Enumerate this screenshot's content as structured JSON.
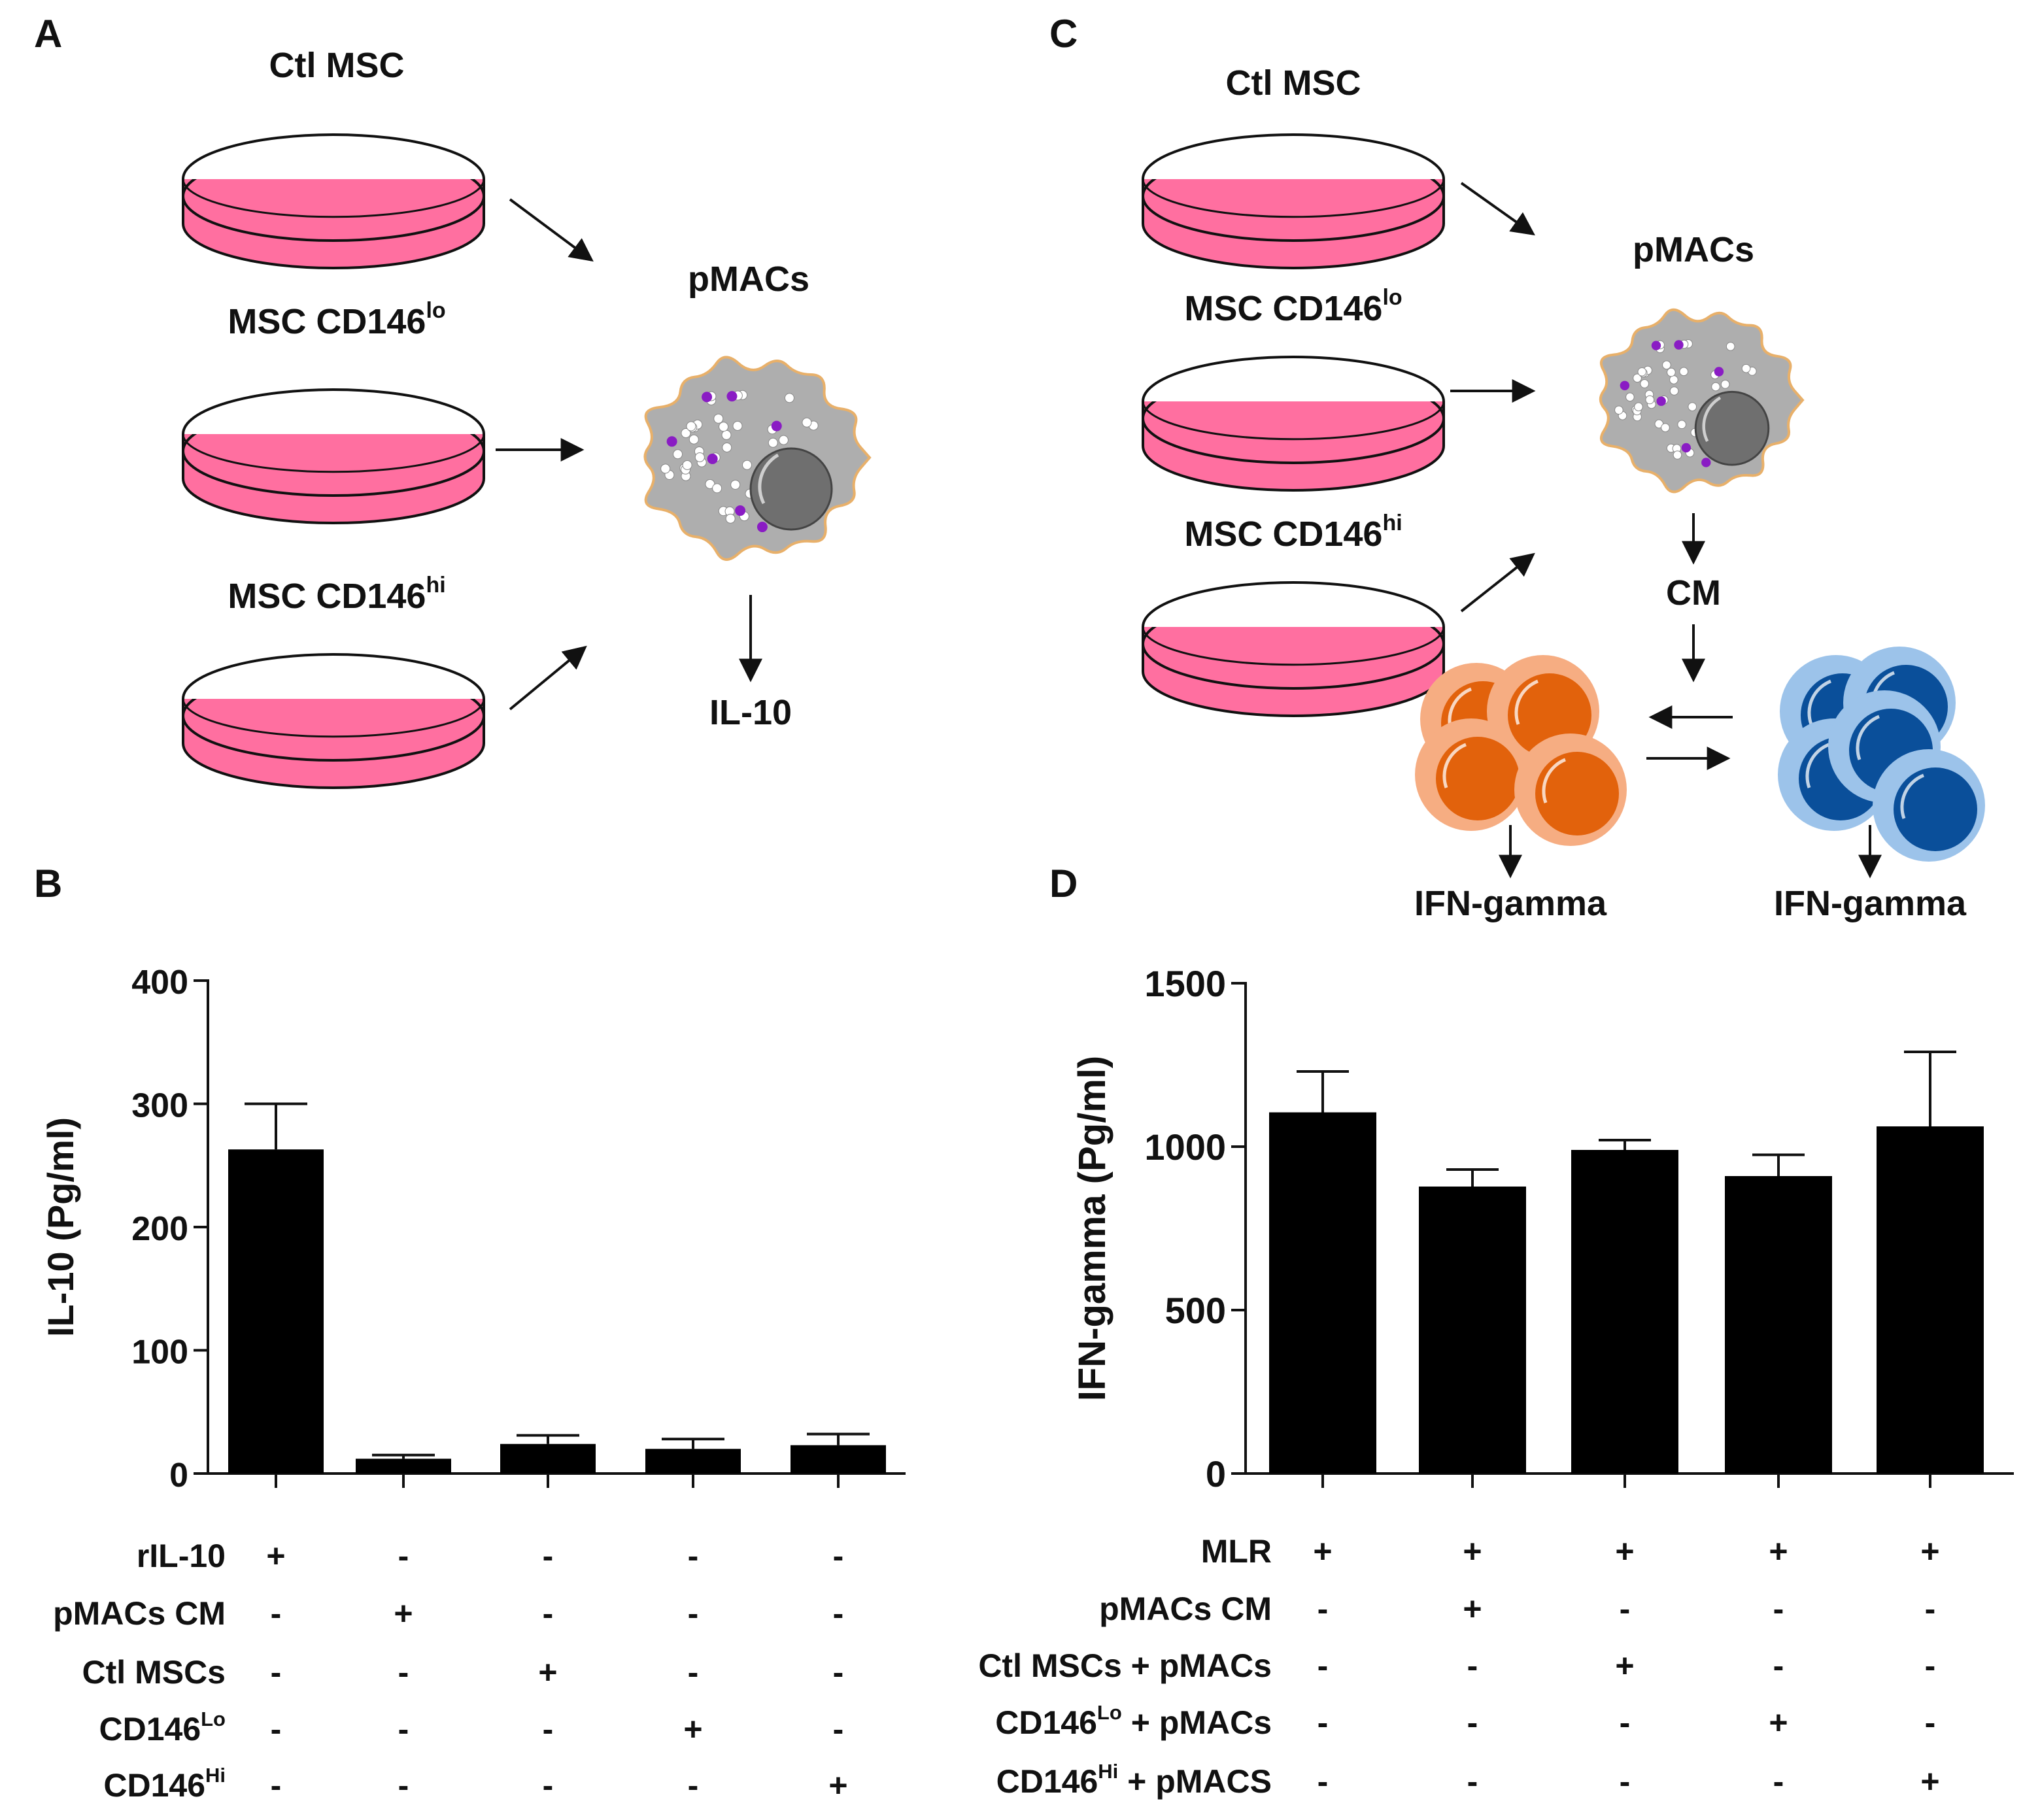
{
  "colors": {
    "dish_fill": "#ff6fa0",
    "bar": "#000000",
    "cell_gray": "#aeaeae",
    "cell_outline": "#e8b06a",
    "nucleus": "#6f6f6f",
    "purple_dot": "#8a1cc4",
    "orange_cell": "#e2620c",
    "orange_light": "#f6ad82",
    "blue_cell": "#0a4f9a",
    "blue_light": "#9cc3ea"
  },
  "panelA": {
    "letter": "A",
    "dish1": {
      "label": "Ctl MSC"
    },
    "dish2": {
      "label": "MSC CD146",
      "sup": "lo"
    },
    "dish3": {
      "label": "MSC CD146",
      "sup": "hi"
    },
    "target": "pMACs",
    "output": "IL-10"
  },
  "panelC": {
    "letter": "C",
    "dish1": {
      "label": "Ctl MSC"
    },
    "dish2": {
      "label": "MSC CD146",
      "sup": "lo"
    },
    "dish3": {
      "label": "MSC CD146",
      "sup": "hi"
    },
    "target": "pMACs",
    "cm": "CM",
    "output_left": "IFN-gamma",
    "output_right": "IFN-gamma"
  },
  "chart_data": [
    {
      "panel": "B",
      "type": "bar",
      "ylabel": "IL-10 (Pg/ml)",
      "ylim": [
        0,
        400
      ],
      "yticks": [
        0,
        100,
        200,
        300,
        400
      ],
      "values": [
        263,
        12,
        24,
        20,
        23
      ],
      "errors": [
        37,
        3,
        7,
        8,
        9
      ],
      "conditions": [
        {
          "label": "rIL-10",
          "sup": "",
          "signs": [
            "+",
            "-",
            "-",
            "-",
            "-"
          ]
        },
        {
          "label": "pMACs CM",
          "sup": "",
          "signs": [
            "-",
            "+",
            "-",
            "-",
            "-"
          ]
        },
        {
          "label": "Ctl MSCs",
          "sup": "",
          "signs": [
            "-",
            "-",
            "+",
            "-",
            "-"
          ]
        },
        {
          "label": "CD146",
          "sup": "Lo",
          "signs": [
            "-",
            "-",
            "-",
            "+",
            "-"
          ]
        },
        {
          "label": "CD146",
          "sup": "Hi",
          "signs": [
            "-",
            "-",
            "-",
            "-",
            "+"
          ]
        }
      ]
    },
    {
      "panel": "D",
      "type": "bar",
      "ylabel": "IFN-gamma (Pg/ml)",
      "ylim": [
        0,
        1500
      ],
      "yticks": [
        0,
        500,
        1000,
        1500
      ],
      "values": [
        1105,
        878,
        990,
        910,
        1062
      ],
      "errors": [
        125,
        52,
        30,
        65,
        228
      ],
      "conditions": [
        {
          "label": "MLR",
          "sup": "",
          "after": "",
          "signs": [
            "+",
            "+",
            "+",
            "+",
            "+"
          ]
        },
        {
          "label": "pMACs CM",
          "sup": "",
          "after": "",
          "signs": [
            "-",
            "+",
            "-",
            "-",
            "-"
          ]
        },
        {
          "label": "Ctl MSCs + pMACs",
          "sup": "",
          "after": "",
          "signs": [
            "-",
            "-",
            "+",
            "-",
            "-"
          ]
        },
        {
          "label": "CD146",
          "sup": "Lo",
          "after": " + pMACs",
          "signs": [
            "-",
            "-",
            "-",
            "+",
            "-"
          ]
        },
        {
          "label": "CD146",
          "sup": "Hi",
          "after": " + pMACS",
          "signs": [
            "-",
            "-",
            "-",
            "-",
            "+"
          ]
        }
      ]
    }
  ]
}
